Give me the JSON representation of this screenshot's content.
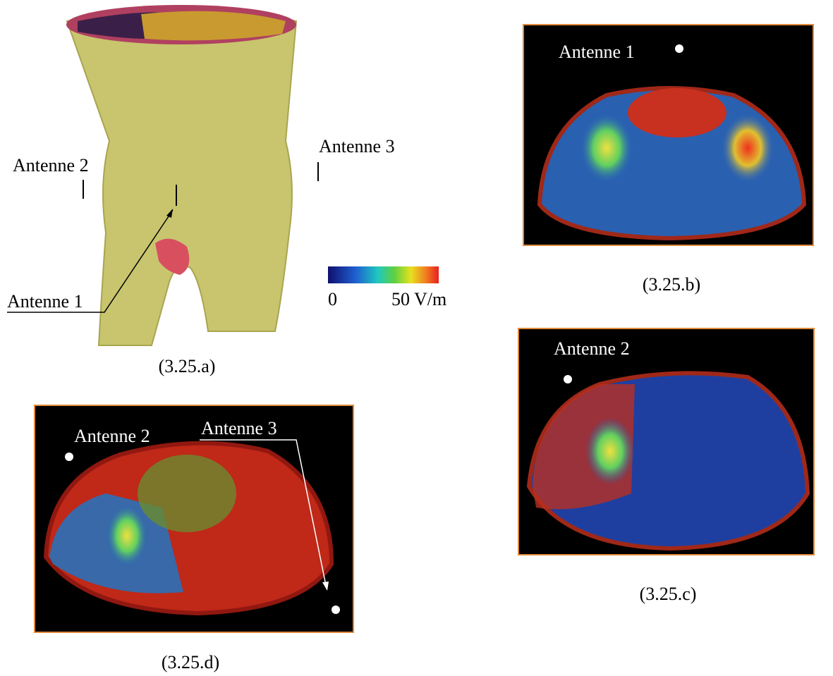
{
  "panels": {
    "a": {
      "caption": "(3.25.a)",
      "antenna_labels": [
        "Antenne 1",
        "Antenne 2",
        "Antenne 3"
      ],
      "colorbar": {
        "min_label": "0",
        "max_label": "50 V/m"
      }
    },
    "b": {
      "caption": "(3.25.b)",
      "antenna_label": "Antenne 1"
    },
    "c": {
      "caption": "(3.25.c)",
      "antenna_label": "Antenne 2"
    },
    "d": {
      "caption": "(3.25.d)",
      "antenna_labels": [
        "Antenne 2",
        "Antenne 3"
      ]
    }
  }
}
